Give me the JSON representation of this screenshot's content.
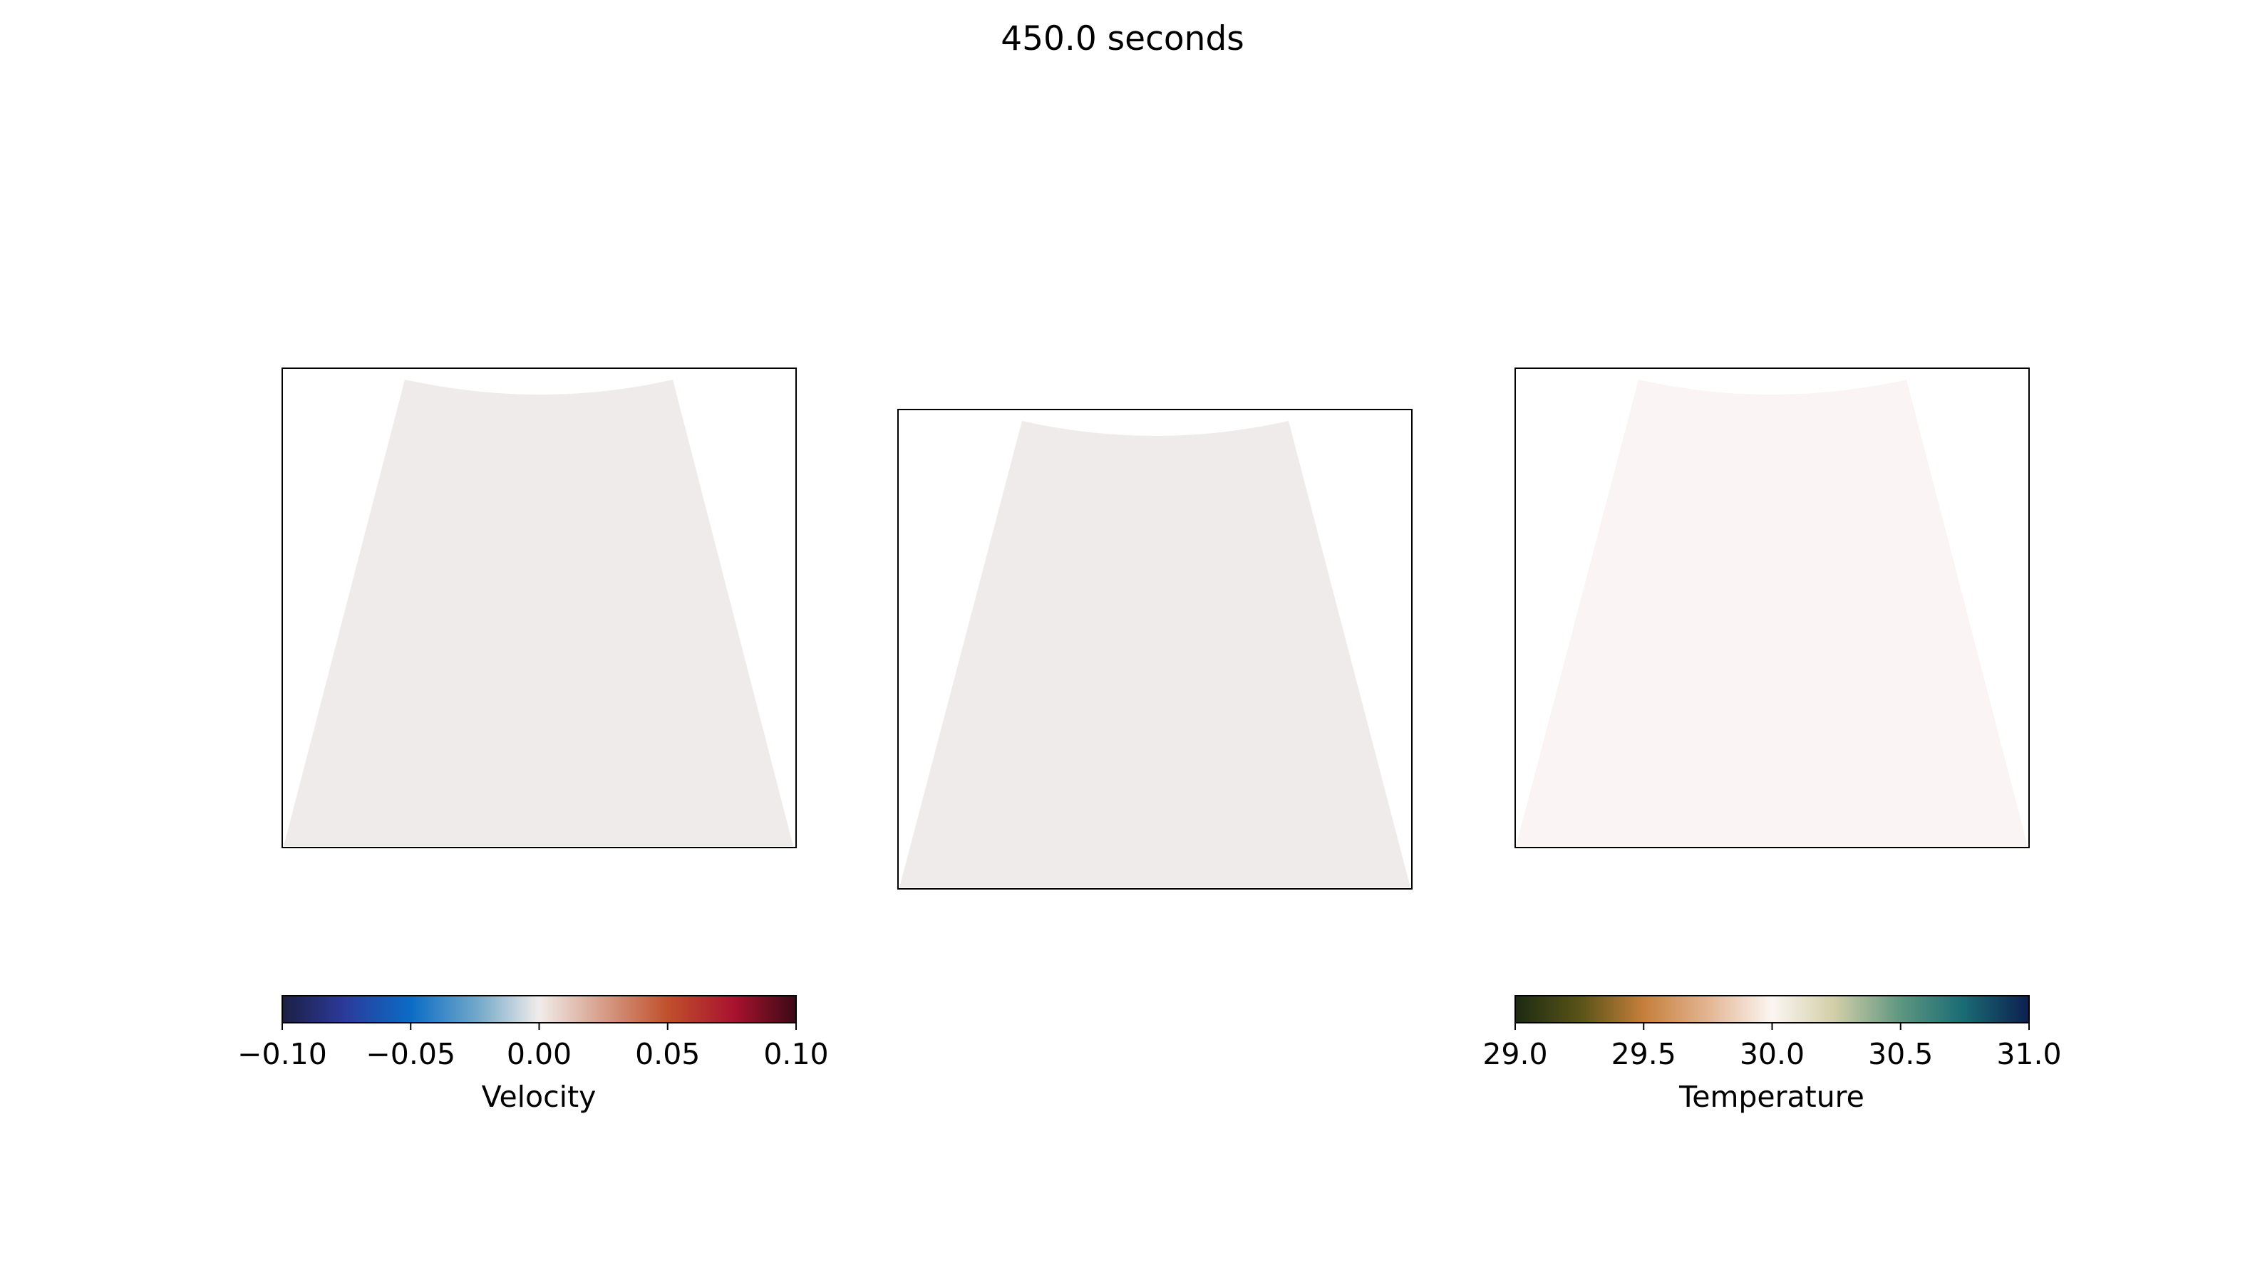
{
  "chart_data": [
    {
      "type": "heatmap",
      "panel": "left",
      "title": "450.0 seconds",
      "field": "velocity",
      "value": 0.0,
      "fill_color": "#efebeb"
    },
    {
      "type": "heatmap",
      "panel": "center",
      "title": "450.0 seconds",
      "field": "velocity",
      "value": 0.0,
      "fill_color": "#efebeb"
    },
    {
      "type": "heatmap",
      "panel": "right",
      "title": "450.0 seconds",
      "field": "temperature",
      "value": 30.0,
      "fill_color": "#faf5f4"
    }
  ],
  "figure": {
    "title": "450.0 seconds"
  },
  "colorbars": [
    {
      "name": "velocity",
      "label": "Velocity",
      "vmin": -0.1,
      "vmax": 0.1,
      "ticks": [
        -0.1,
        -0.05,
        0.0,
        0.05,
        0.1
      ],
      "tick_labels": [
        "−0.10",
        "−0.05",
        "0.00",
        "0.05",
        "0.10"
      ],
      "stops": [
        {
          "pos": 0.0,
          "color": "#1c1f44"
        },
        {
          "pos": 0.12,
          "color": "#2b3a9a"
        },
        {
          "pos": 0.25,
          "color": "#0b6cc6"
        },
        {
          "pos": 0.38,
          "color": "#72a8c9"
        },
        {
          "pos": 0.5,
          "color": "#f1ecea"
        },
        {
          "pos": 0.62,
          "color": "#d7a08c"
        },
        {
          "pos": 0.75,
          "color": "#c0502c"
        },
        {
          "pos": 0.88,
          "color": "#a8122e"
        },
        {
          "pos": 1.0,
          "color": "#3a0a15"
        }
      ]
    },
    {
      "name": "temperature",
      "label": "Temperature",
      "vmin": 29.0,
      "vmax": 31.0,
      "ticks": [
        29.0,
        29.5,
        30.0,
        30.5,
        31.0
      ],
      "tick_labels": [
        "29.0",
        "29.5",
        "30.0",
        "30.5",
        "31.0"
      ],
      "stops": [
        {
          "pos": 0.0,
          "color": "#1c2a12"
        },
        {
          "pos": 0.13,
          "color": "#5b5418"
        },
        {
          "pos": 0.25,
          "color": "#c57f3b"
        },
        {
          "pos": 0.38,
          "color": "#e4b796"
        },
        {
          "pos": 0.5,
          "color": "#fbf6f2"
        },
        {
          "pos": 0.62,
          "color": "#d3cfa9"
        },
        {
          "pos": 0.75,
          "color": "#5e9680"
        },
        {
          "pos": 0.87,
          "color": "#1a6c74"
        },
        {
          "pos": 1.0,
          "color": "#0d1f4f"
        }
      ]
    }
  ]
}
